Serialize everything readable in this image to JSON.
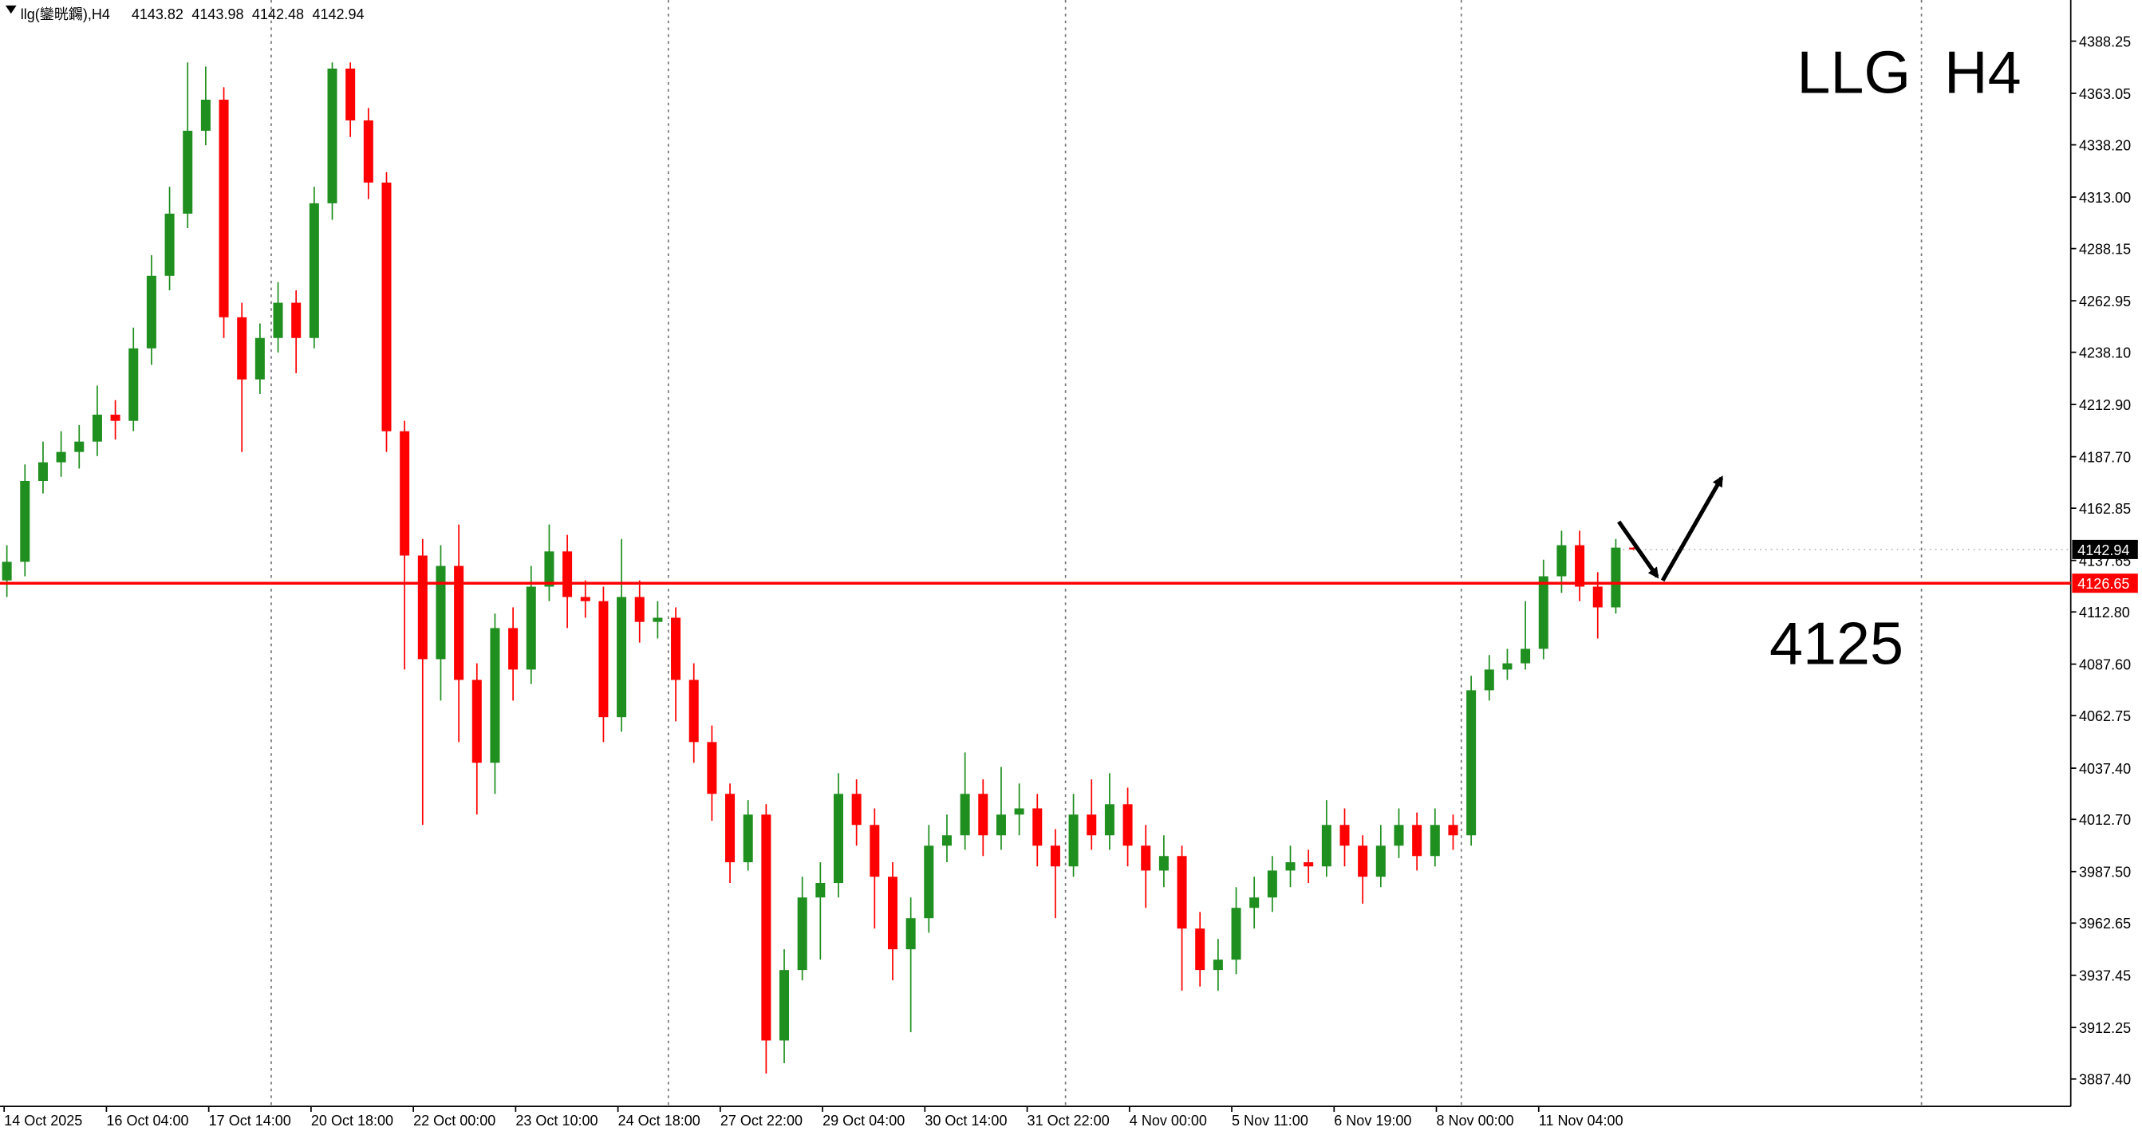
{
  "chart_data": {
    "type": "candlestick",
    "title": "llg(鑾晄鐊),H4",
    "annotations": [
      "LLG  H4",
      "4125"
    ],
    "open": [
      4128,
      4137,
      4176,
      4185,
      4190,
      4195,
      4208,
      4205,
      4240,
      4275,
      4305,
      4345,
      4360,
      4255,
      4225,
      4245,
      4262,
      4245,
      4310,
      4375,
      4350,
      4320,
      4200,
      4140,
      4090,
      4135,
      4080,
      4040,
      4105,
      4085,
      4125,
      4142,
      4120,
      4118,
      4062,
      4120,
      4108,
      4110,
      4080,
      4050,
      4025,
      3992,
      4015,
      3906,
      3940,
      3975,
      3982,
      4025,
      4010,
      3985,
      3950,
      3965,
      4000,
      4005,
      4025,
      4005,
      4015,
      4018,
      4000,
      3990,
      4015,
      4005,
      4020,
      4000,
      3988,
      3995,
      3960,
      3940,
      3945,
      3970,
      3975,
      3988,
      3992,
      3990,
      4010,
      4000,
      3985,
      4000,
      4010,
      3995,
      4010,
      4005,
      4075,
      4085,
      4088,
      4095,
      4130,
      4145,
      4125,
      4115,
      4143.82
    ],
    "high": [
      4145,
      4184,
      4195,
      4200,
      4203,
      4222,
      4215,
      4250,
      4285,
      4318,
      4378,
      4376,
      4366,
      4262,
      4252,
      4272,
      4268,
      4318,
      4378,
      4378,
      4356,
      4325,
      4205,
      4148,
      4145,
      4155,
      4088,
      4112,
      4115,
      4135,
      4155,
      4150,
      4128,
      4125,
      4148,
      4128,
      4118,
      4115,
      4088,
      4058,
      4030,
      4022,
      4020,
      3950,
      3985,
      3992,
      4035,
      4032,
      4018,
      3992,
      3975,
      4010,
      4015,
      4045,
      4032,
      4038,
      4030,
      4025,
      4008,
      4025,
      4032,
      4035,
      4028,
      4010,
      4005,
      4000,
      3968,
      3955,
      3980,
      3985,
      3995,
      4000,
      3998,
      4022,
      4018,
      4005,
      4010,
      4018,
      4016,
      4018,
      4015,
      4082,
      4092,
      4095,
      4118,
      4138,
      4152,
      4152,
      4132,
      4148,
      4143.98
    ],
    "low": [
      4120,
      4130,
      4170,
      4178,
      4182,
      4188,
      4196,
      4200,
      4232,
      4268,
      4298,
      4338,
      4245,
      4190,
      4218,
      4238,
      4228,
      4240,
      4302,
      4342,
      4312,
      4190,
      4085,
      4010,
      4070,
      4050,
      4015,
      4025,
      4070,
      4078,
      4118,
      4105,
      4110,
      4050,
      4055,
      4098,
      4100,
      4060,
      4040,
      4012,
      3982,
      3988,
      3890,
      3895,
      3935,
      3945,
      3975,
      4000,
      3960,
      3935,
      3910,
      3958,
      3992,
      3998,
      3995,
      3998,
      4005,
      3990,
      3965,
      3985,
      3998,
      3998,
      3990,
      3970,
      3980,
      3930,
      3932,
      3930,
      3938,
      3960,
      3968,
      3980,
      3982,
      3985,
      3990,
      3972,
      3980,
      3994,
      3988,
      3990,
      3998,
      4000,
      4070,
      4080,
      4085,
      4090,
      4122,
      4118,
      4100,
      4112,
      4142.48
    ],
    "close": [
      4137,
      4176,
      4185,
      4190,
      4195,
      4208,
      4205,
      4240,
      4275,
      4305,
      4345,
      4360,
      4255,
      4225,
      4245,
      4262,
      4245,
      4310,
      4375,
      4350,
      4320,
      4200,
      4140,
      4090,
      4135,
      4080,
      4040,
      4105,
      4085,
      4125,
      4142,
      4120,
      4118,
      4062,
      4120,
      4108,
      4110,
      4080,
      4050,
      4025,
      3992,
      4015,
      3906,
      3940,
      3975,
      3982,
      4025,
      4010,
      3985,
      3950,
      3965,
      4000,
      4005,
      4025,
      4005,
      4015,
      4018,
      4000,
      3990,
      4015,
      4005,
      4020,
      4000,
      3988,
      3995,
      3960,
      3940,
      3945,
      3970,
      3975,
      3988,
      3992,
      3990,
      4010,
      4000,
      3985,
      4000,
      4010,
      3995,
      4010,
      4005,
      4075,
      4085,
      4088,
      4095,
      4130,
      4145,
      4125,
      4115,
      4143.82,
      4142.94
    ],
    "up_color": "#1f8f1f",
    "down_color": "#ff0000",
    "time_labels": [
      "14 Oct 2025",
      "16 Oct 04:00",
      "17 Oct 14:00",
      "20 Oct 18:00",
      "22 Oct 00:00",
      "23 Oct 10:00",
      "24 Oct 18:00",
      "27 Oct 22:00",
      "29 Oct 04:00",
      "30 Oct 14:00",
      "31 Oct 22:00",
      "4 Nov 00:00",
      "5 Nov 11:00",
      "6 Nov 19:00",
      "8 Nov 00:00",
      "11 Nov 04:00"
    ],
    "ylim": [
      3874.2,
      4408.1
    ],
    "yticks": [
      4388.25,
      4363.05,
      {
        "value": 4338.2,
        "label": "4338.20"
      },
      {
        "value": 4313,
        "label": "4313.00"
      },
      4288.15,
      4262.95,
      {
        "value": 4238.1,
        "label": "4238.10"
      },
      {
        "value": 4212.9,
        "label": "4212.90"
      },
      {
        "value": 4187.7,
        "label": "4187.70"
      },
      4162.85,
      4137.65,
      {
        "value": 4112.8,
        "label": "4112.80"
      },
      {
        "value": 4087.6,
        "label": "4087.60"
      },
      4062.75,
      {
        "value": 4037.4,
        "label": "4037.40"
      },
      {
        "value": 4012.7,
        "label": "4012.70"
      },
      {
        "value": 3987.5,
        "label": "3987.50"
      },
      3962.65,
      3937.45,
      3912.25,
      {
        "value": 3887.4,
        "label": "3887.40"
      }
    ],
    "last_price": 4142.94,
    "level_line": 4126.65,
    "level_color": "#ff0000"
  }
}
